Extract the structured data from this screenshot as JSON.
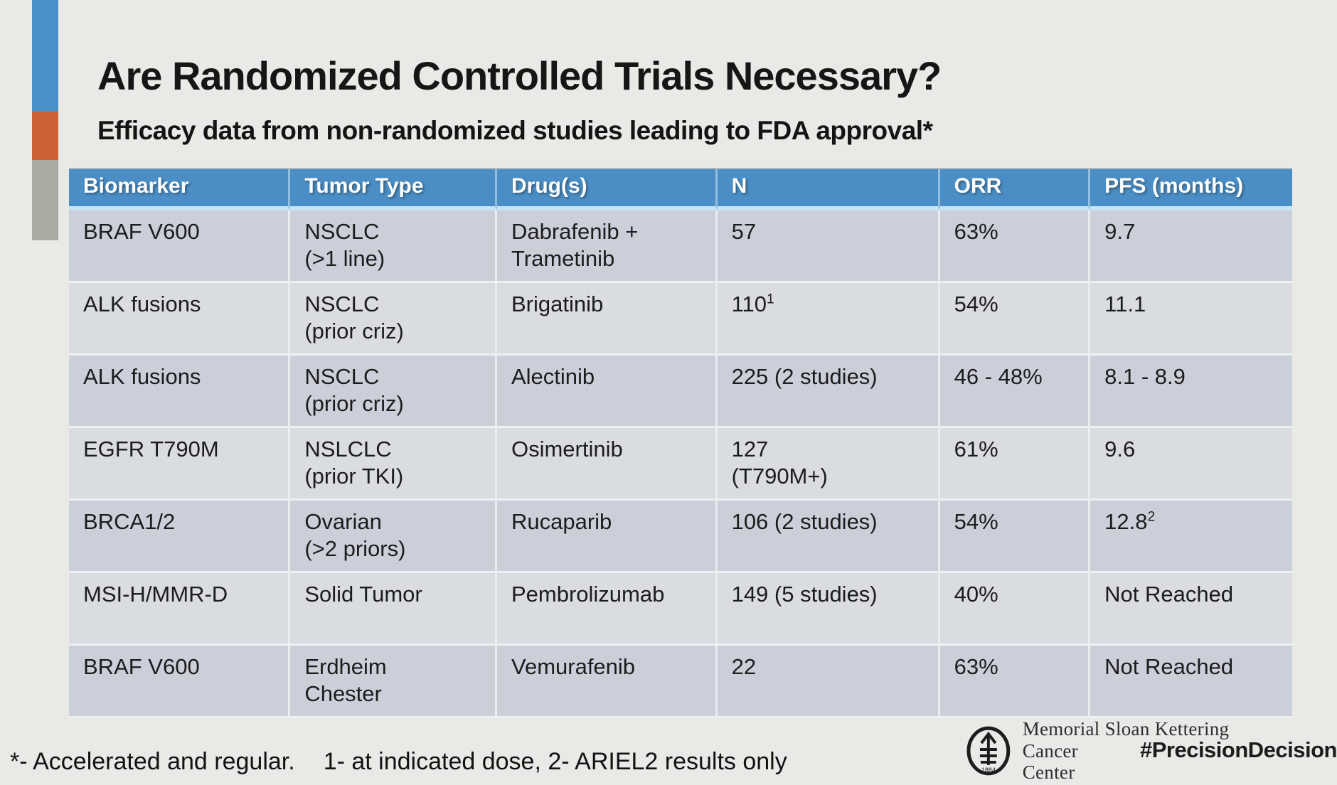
{
  "title": "Are Randomized Controlled Trials Necessary?",
  "subtitle": "Efficacy data from non-randomized studies leading to FDA approval*",
  "colors": {
    "background": "#e9eae6",
    "header_bg": "#4a8ec5",
    "row_dark": "#cacfda",
    "row_light": "#d9dce1",
    "accent_blue": "#4a90c8",
    "accent_orange": "#cc6233",
    "accent_gray": "#aaaaa0"
  },
  "table": {
    "columns": [
      "Biomarker",
      "Tumor Type",
      "Drug(s)",
      "N",
      "ORR",
      "PFS (months)"
    ],
    "column_widths_pct": [
      18.1,
      16.9,
      18.0,
      18.2,
      12.3,
      16.5
    ],
    "rows": [
      {
        "cells": [
          {
            "lines": [
              "BRAF V600"
            ]
          },
          {
            "lines": [
              "NSCLC",
              "(>1 line)"
            ]
          },
          {
            "lines": [
              "Dabrafenib +",
              "Trametinib"
            ]
          },
          {
            "lines": [
              "57"
            ]
          },
          {
            "lines": [
              "63%"
            ]
          },
          {
            "lines": [
              "9.7"
            ]
          }
        ]
      },
      {
        "cells": [
          {
            "lines": [
              "ALK fusions"
            ]
          },
          {
            "lines": [
              "NSCLC",
              "(prior criz)"
            ]
          },
          {
            "lines": [
              "Brigatinib"
            ]
          },
          {
            "lines": [
              "110"
            ],
            "sup": "1"
          },
          {
            "lines": [
              "54%"
            ]
          },
          {
            "lines": [
              "11.1"
            ]
          }
        ]
      },
      {
        "cells": [
          {
            "lines": [
              "ALK fusions"
            ]
          },
          {
            "lines": [
              "NSCLC",
              "(prior criz)"
            ]
          },
          {
            "lines": [
              "Alectinib"
            ]
          },
          {
            "lines": [
              "225 (2 studies)"
            ]
          },
          {
            "lines": [
              "46 - 48%"
            ]
          },
          {
            "lines": [
              "8.1 - 8.9"
            ]
          }
        ]
      },
      {
        "cells": [
          {
            "lines": [
              "EGFR T790M"
            ]
          },
          {
            "lines": [
              "NSLCLC",
              "(prior TKI)"
            ]
          },
          {
            "lines": [
              "Osimertinib"
            ]
          },
          {
            "lines": [
              "127",
              "(T790M+)"
            ]
          },
          {
            "lines": [
              "61%"
            ]
          },
          {
            "lines": [
              "9.6"
            ]
          }
        ]
      },
      {
        "cells": [
          {
            "lines": [
              "BRCA1/2"
            ]
          },
          {
            "lines": [
              "Ovarian",
              "(>2 priors)"
            ]
          },
          {
            "lines": [
              "Rucaparib"
            ]
          },
          {
            "lines": [
              "106 (2 studies)"
            ]
          },
          {
            "lines": [
              "54%"
            ]
          },
          {
            "lines": [
              "12.8"
            ],
            "sup": "2"
          }
        ]
      },
      {
        "cells": [
          {
            "lines": [
              "MSI-H/MMR-D"
            ]
          },
          {
            "lines": [
              "Solid Tumor"
            ]
          },
          {
            "lines": [
              "Pembrolizumab"
            ]
          },
          {
            "lines": [
              "149 (5 studies)"
            ]
          },
          {
            "lines": [
              "40%"
            ]
          },
          {
            "lines": [
              "Not Reached"
            ]
          }
        ]
      },
      {
        "cells": [
          {
            "lines": [
              "BRAF V600"
            ]
          },
          {
            "lines": [
              "Erdheim",
              "Chester"
            ]
          },
          {
            "lines": [
              "Vemurafenib"
            ]
          },
          {
            "lines": [
              "22"
            ]
          },
          {
            "lines": [
              "63%"
            ]
          },
          {
            "lines": [
              "Not Reached"
            ]
          }
        ]
      }
    ]
  },
  "footnote": {
    "part1": "*- Accelerated and regular.",
    "part2": "1- at indicated dose, 2- ARIEL2 results only"
  },
  "footer": {
    "org_line1": "Memorial Sloan Kettering",
    "org_line2": "Cancer Center",
    "hashtag": "#PrecisionDecision",
    "logo_year": "1884"
  }
}
